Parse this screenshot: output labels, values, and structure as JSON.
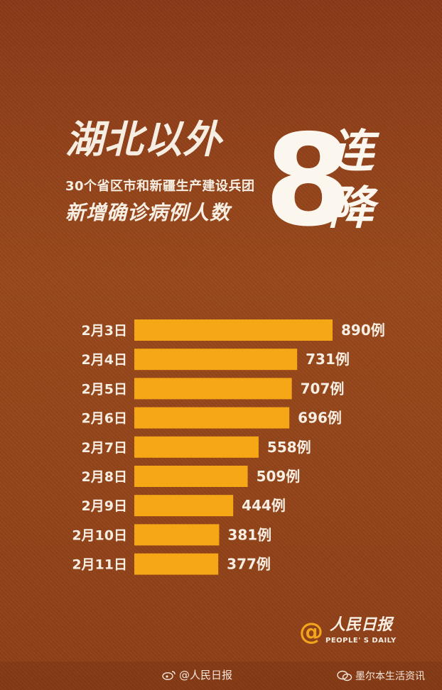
{
  "title": {
    "main": "湖北以外",
    "sub1": "30个省区市和新疆生产建设兵团",
    "sub2": "新增确诊病例人数",
    "big_number": "8",
    "lian": "连",
    "jiang": "降"
  },
  "chart_data": {
    "type": "bar",
    "orientation": "horizontal",
    "categories": [
      "2月3日",
      "2月4日",
      "2月5日",
      "2月6日",
      "2月7日",
      "2月8日",
      "2月9日",
      "2月10日",
      "2月11日"
    ],
    "values": [
      890,
      731,
      707,
      696,
      558,
      509,
      444,
      381,
      377
    ],
    "value_labels": [
      "890例",
      "731例",
      "707例",
      "696例",
      "558例",
      "509例",
      "444例",
      "381例",
      "377例"
    ],
    "title": "",
    "xlabel": "",
    "ylabel": "",
    "xlim": [
      0,
      900
    ],
    "grid": false,
    "bar_color": "#f5a716"
  },
  "colors": {
    "background": "#8f4018",
    "bar": "#f5a716",
    "text": "#f6eee2",
    "logo_accent": "#f2a51a"
  },
  "logo": {
    "symbol": "@",
    "cn": "人民日报",
    "en": "PEOPLE' S DAILY"
  },
  "footer": {
    "weibo_icon": "weibo-icon",
    "weibo_text": "@人民日报",
    "wechat_icon": "wechat-icon",
    "wechat_text": "墨尔本生活资讯"
  }
}
